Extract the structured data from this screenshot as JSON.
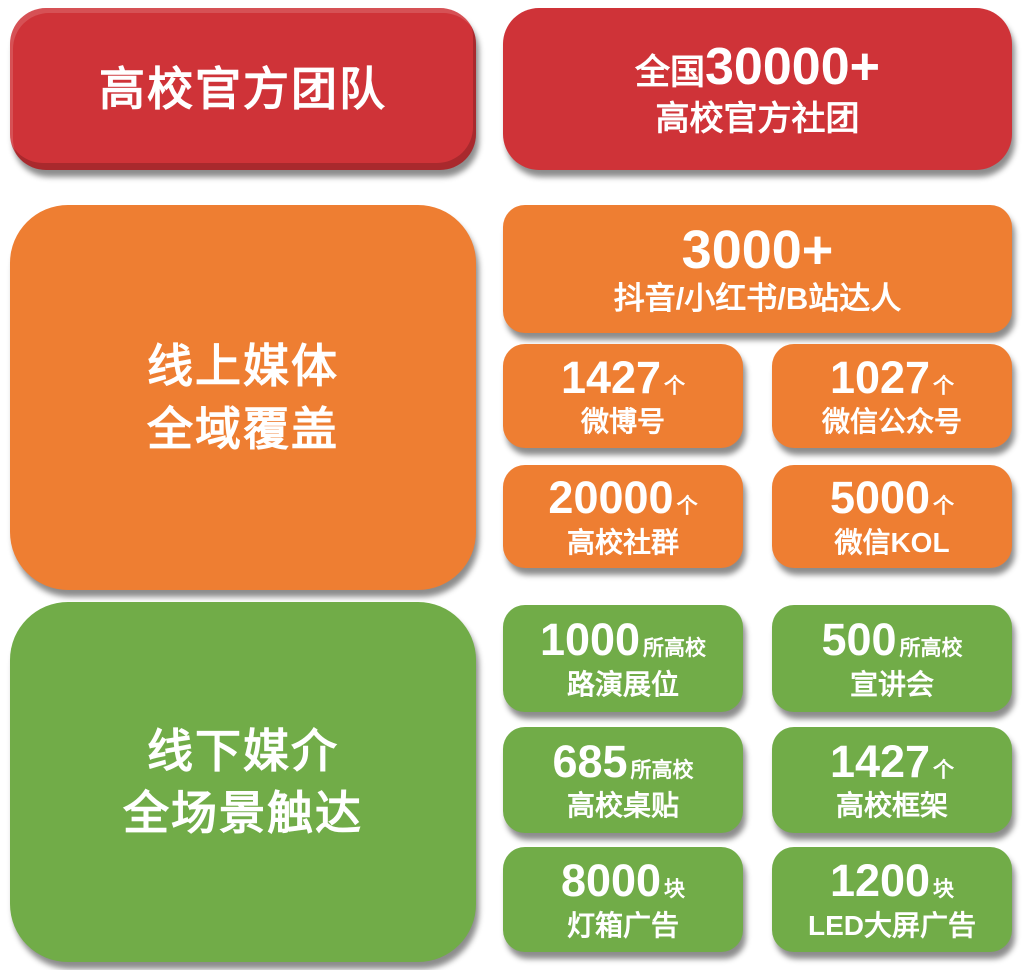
{
  "canvas": {
    "background": "#ffffff"
  },
  "palette": {
    "red": "#cf3338",
    "orange": "#ee7e32",
    "green": "#71ac48",
    "text": "#ffffff"
  },
  "sections": [
    {
      "color": "#cf3338",
      "title_lines": [
        "高校官方团队"
      ],
      "cards": [
        {
          "prefix": "全国",
          "number": "30000+",
          "label": "高校官方社团"
        }
      ]
    },
    {
      "color": "#ee7e32",
      "title_lines": [
        "线上媒体",
        "全域覆盖"
      ],
      "cards": [
        {
          "number": "3000+",
          "label": "抖音/小红书/B站达人"
        },
        {
          "number": "1427",
          "unit": "个",
          "label": "微博号"
        },
        {
          "number": "1027",
          "unit": "个",
          "label": "微信公众号"
        },
        {
          "number": "20000",
          "unit": "个",
          "label": "高校社群"
        },
        {
          "number": "5000",
          "unit": "个",
          "label": "微信KOL"
        }
      ]
    },
    {
      "color": "#71ac48",
      "title_lines": [
        "线下媒介",
        "全场景触达"
      ],
      "cards": [
        {
          "number": "1000",
          "unit": "所高校",
          "label": "路演展位"
        },
        {
          "number": "500",
          "unit": "所高校",
          "label": "宣讲会"
        },
        {
          "number": "685",
          "unit": "所高校",
          "label": "高校桌贴"
        },
        {
          "number": "1427",
          "unit": "个",
          "label": "高校框架"
        },
        {
          "number": "8000",
          "unit": "块",
          "label": "灯箱广告"
        },
        {
          "number": "1200",
          "unit": "块",
          "label": "LED大屏广告"
        }
      ]
    }
  ]
}
